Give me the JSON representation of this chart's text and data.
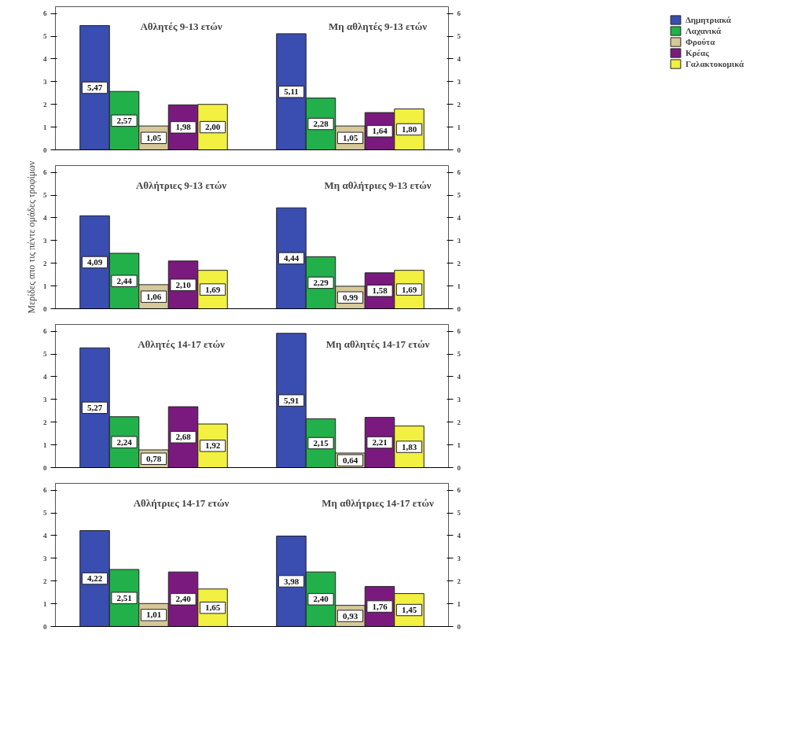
{
  "chart_data": [
    {
      "type": "bar",
      "categories": [
        null,
        null
      ],
      "ylim": [
        0,
        6.3
      ],
      "yticks": [
        0,
        1,
        2,
        3,
        4,
        5,
        6
      ],
      "y2lim": [
        0,
        6.3
      ],
      "y2ticks": [
        0,
        1,
        2,
        3,
        4,
        5,
        6
      ],
      "legend": "right",
      "annotations": [
        "Αθλητές 9-13 ετών",
        "Μη αθλητές 9-13 ετών"
      ],
      "series": [
        {
          "name": "Δημητριακά",
          "color": "#3a4db0",
          "values": [
            5.47,
            5.11
          ],
          "value_labels": [
            "5,47",
            "5,11"
          ]
        },
        {
          "name": "Λαχανικά",
          "color": "#22b04a",
          "values": [
            2.57,
            2.28
          ],
          "value_labels": [
            "2,57",
            "2,28"
          ]
        },
        {
          "name": "Φρούτα",
          "color": "#d6c898",
          "values": [
            1.05,
            1.05
          ],
          "value_labels": [
            "1,05",
            "1,05"
          ]
        },
        {
          "name": "Κρέας",
          "color": "#7a1a7e",
          "values": [
            1.98,
            1.64
          ],
          "value_labels": [
            "1,98",
            "1,64"
          ]
        },
        {
          "name": "Γαλακτοκομικά",
          "color": "#f2f040",
          "values": [
            2.0,
            1.8
          ],
          "value_labels": [
            "2,00",
            "1,80"
          ]
        }
      ]
    },
    {
      "type": "bar",
      "categories": [
        null,
        null
      ],
      "ylim": [
        0,
        6.3
      ],
      "yticks": [
        0,
        1,
        2,
        3,
        4,
        5,
        6
      ],
      "y2lim": [
        0,
        6.3
      ],
      "y2ticks": [
        0,
        1,
        2,
        3,
        4,
        5,
        6
      ],
      "ylabel": "Μερίδες απο τις πέντε ομάδες τροφίμων",
      "annotations": [
        "Αθλήτριες 9-13 ετών",
        "Μη αθλήτριες 9-13 ετών"
      ],
      "series": [
        {
          "color": "#3a4db0",
          "values": [
            4.09,
            4.44
          ],
          "value_labels": [
            "4,09",
            "4,44"
          ]
        },
        {
          "color": "#22b04a",
          "values": [
            2.44,
            2.29
          ],
          "value_labels": [
            "2,44",
            "2,29"
          ]
        },
        {
          "color": "#d6c898",
          "values": [
            1.06,
            0.99
          ],
          "value_labels": [
            "1,06",
            "0,99"
          ]
        },
        {
          "color": "#7a1a7e",
          "values": [
            2.1,
            1.58
          ],
          "value_labels": [
            "2,10",
            "1,58"
          ]
        },
        {
          "color": "#f2f040",
          "values": [
            1.69,
            1.69
          ],
          "value_labels": [
            "1,69",
            "1,69"
          ]
        }
      ]
    },
    {
      "type": "bar",
      "categories": [
        null,
        null
      ],
      "ylim": [
        0,
        6.3
      ],
      "yticks": [
        0,
        1,
        2,
        3,
        4,
        5,
        6
      ],
      "y2lim": [
        0,
        6.3
      ],
      "y2ticks": [
        0,
        1,
        2,
        3,
        4,
        5,
        6
      ],
      "annotations": [
        "Αθλητές 14-17 ετών",
        "Μη αθλητές 14-17 ετών"
      ],
      "series": [
        {
          "color": "#3a4db0",
          "values": [
            5.27,
            5.91
          ],
          "value_labels": [
            "5,27",
            "5,91"
          ]
        },
        {
          "color": "#22b04a",
          "values": [
            2.24,
            2.15
          ],
          "value_labels": [
            "2,24",
            "2,15"
          ]
        },
        {
          "color": "#d6c898",
          "values": [
            0.78,
            0.64
          ],
          "value_labels": [
            "0,78",
            "0,64"
          ]
        },
        {
          "color": "#7a1a7e",
          "values": [
            2.68,
            2.21
          ],
          "value_labels": [
            "2,68",
            "2,21"
          ]
        },
        {
          "color": "#f2f040",
          "values": [
            1.92,
            1.83
          ],
          "value_labels": [
            "1,92",
            "1,83"
          ]
        }
      ]
    },
    {
      "type": "bar",
      "categories": [
        null,
        null
      ],
      "ylim": [
        0,
        6.3
      ],
      "yticks": [
        0,
        1,
        2,
        3,
        4,
        5,
        6
      ],
      "y2lim": [
        0,
        6.3
      ],
      "y2ticks": [
        0,
        1,
        2,
        3,
        4,
        5,
        6
      ],
      "annotations": [
        "Αθλήτριες 14-17 ετών",
        "Μη αθλήτριες 14-17 ετών"
      ],
      "series": [
        {
          "color": "#3a4db0",
          "values": [
            4.22,
            3.98
          ],
          "value_labels": [
            "4,22",
            "3,98"
          ]
        },
        {
          "color": "#22b04a",
          "values": [
            2.51,
            2.4
          ],
          "value_labels": [
            "2,51",
            "2,40"
          ]
        },
        {
          "color": "#d6c898",
          "values": [
            1.01,
            0.93
          ],
          "value_labels": [
            "1,01",
            "0,93"
          ]
        },
        {
          "color": "#7a1a7e",
          "values": [
            2.4,
            1.76
          ],
          "value_labels": [
            "2,40",
            "1,76"
          ]
        },
        {
          "color": "#f2f040",
          "values": [
            1.65,
            1.45
          ],
          "value_labels": [
            "1,65",
            "1,45"
          ]
        }
      ]
    }
  ]
}
